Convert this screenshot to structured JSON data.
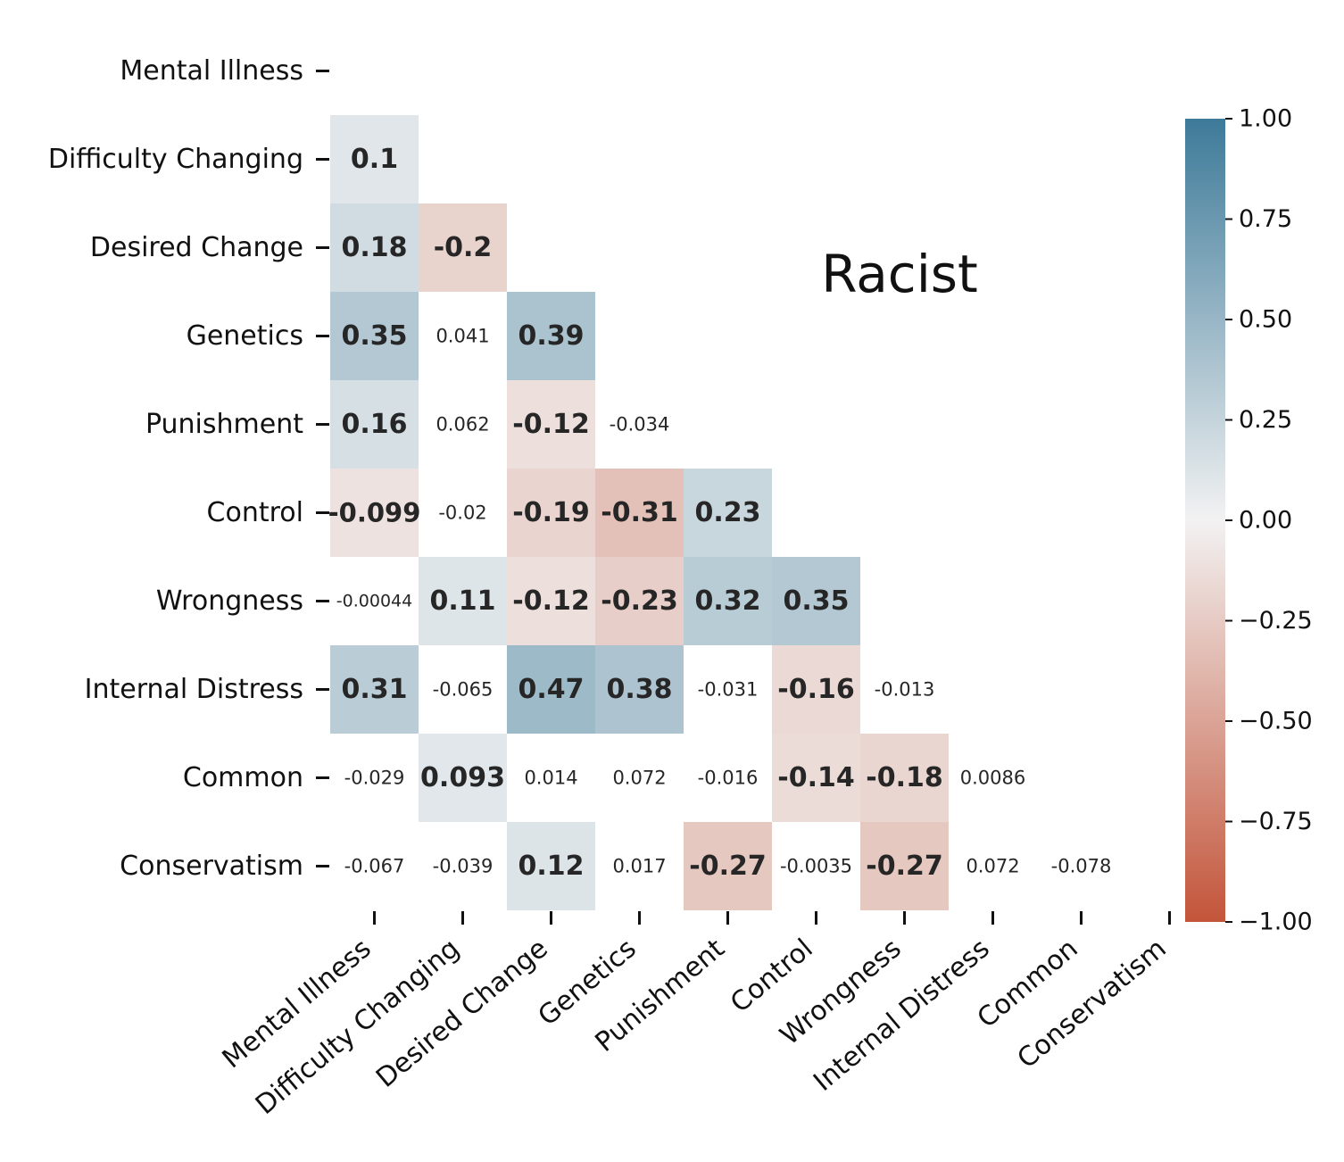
{
  "chart_data": {
    "type": "heatmap",
    "title": "Racist",
    "variables": [
      "Mental Illness",
      "Difficulty Changing",
      "Desired Change",
      "Genetics",
      "Punishment",
      "Control",
      "Wrongness",
      "Internal Distress",
      "Common",
      "Conservatism"
    ],
    "lower_triangle": true,
    "cells": [
      {
        "row": "Difficulty Changing",
        "col": "Mental Illness",
        "value": 0.1,
        "label": "0.1",
        "bold": true
      },
      {
        "row": "Desired Change",
        "col": "Mental Illness",
        "value": 0.18,
        "label": "0.18",
        "bold": true
      },
      {
        "row": "Desired Change",
        "col": "Difficulty Changing",
        "value": -0.2,
        "label": "-0.2",
        "bold": true
      },
      {
        "row": "Genetics",
        "col": "Mental Illness",
        "value": 0.35,
        "label": "0.35",
        "bold": true
      },
      {
        "row": "Genetics",
        "col": "Difficulty Changing",
        "value": 0.041,
        "label": "0.041",
        "bold": false
      },
      {
        "row": "Genetics",
        "col": "Desired Change",
        "value": 0.39,
        "label": "0.39",
        "bold": true
      },
      {
        "row": "Punishment",
        "col": "Mental Illness",
        "value": 0.16,
        "label": "0.16",
        "bold": true
      },
      {
        "row": "Punishment",
        "col": "Difficulty Changing",
        "value": 0.062,
        "label": "0.062",
        "bold": false
      },
      {
        "row": "Punishment",
        "col": "Desired Change",
        "value": -0.12,
        "label": "-0.12",
        "bold": true
      },
      {
        "row": "Punishment",
        "col": "Genetics",
        "value": -0.034,
        "label": "-0.034",
        "bold": false
      },
      {
        "row": "Control",
        "col": "Mental Illness",
        "value": -0.099,
        "label": "-0.099",
        "bold": true
      },
      {
        "row": "Control",
        "col": "Difficulty Changing",
        "value": -0.02,
        "label": "-0.02",
        "bold": false
      },
      {
        "row": "Control",
        "col": "Desired Change",
        "value": -0.19,
        "label": "-0.19",
        "bold": true
      },
      {
        "row": "Control",
        "col": "Genetics",
        "value": -0.31,
        "label": "-0.31",
        "bold": true
      },
      {
        "row": "Control",
        "col": "Punishment",
        "value": 0.23,
        "label": "0.23",
        "bold": true
      },
      {
        "row": "Wrongness",
        "col": "Mental Illness",
        "value": -0.00044,
        "label": "-0.00044",
        "bold": false
      },
      {
        "row": "Wrongness",
        "col": "Difficulty Changing",
        "value": 0.11,
        "label": "0.11",
        "bold": true
      },
      {
        "row": "Wrongness",
        "col": "Desired Change",
        "value": -0.12,
        "label": "-0.12",
        "bold": true
      },
      {
        "row": "Wrongness",
        "col": "Genetics",
        "value": -0.23,
        "label": "-0.23",
        "bold": true
      },
      {
        "row": "Wrongness",
        "col": "Punishment",
        "value": 0.32,
        "label": "0.32",
        "bold": true
      },
      {
        "row": "Wrongness",
        "col": "Control",
        "value": 0.35,
        "label": "0.35",
        "bold": true
      },
      {
        "row": "Internal Distress",
        "col": "Mental Illness",
        "value": 0.31,
        "label": "0.31",
        "bold": true
      },
      {
        "row": "Internal Distress",
        "col": "Difficulty Changing",
        "value": -0.065,
        "label": "-0.065",
        "bold": false
      },
      {
        "row": "Internal Distress",
        "col": "Desired Change",
        "value": 0.47,
        "label": "0.47",
        "bold": true
      },
      {
        "row": "Internal Distress",
        "col": "Genetics",
        "value": 0.38,
        "label": "0.38",
        "bold": true
      },
      {
        "row": "Internal Distress",
        "col": "Punishment",
        "value": -0.031,
        "label": "-0.031",
        "bold": false
      },
      {
        "row": "Internal Distress",
        "col": "Control",
        "value": -0.16,
        "label": "-0.16",
        "bold": true
      },
      {
        "row": "Internal Distress",
        "col": "Wrongness",
        "value": -0.013,
        "label": "-0.013",
        "bold": false
      },
      {
        "row": "Common",
        "col": "Mental Illness",
        "value": -0.029,
        "label": "-0.029",
        "bold": false
      },
      {
        "row": "Common",
        "col": "Difficulty Changing",
        "value": 0.093,
        "label": "0.093",
        "bold": true
      },
      {
        "row": "Common",
        "col": "Desired Change",
        "value": 0.014,
        "label": "0.014",
        "bold": false
      },
      {
        "row": "Common",
        "col": "Genetics",
        "value": 0.072,
        "label": "0.072",
        "bold": false
      },
      {
        "row": "Common",
        "col": "Punishment",
        "value": -0.016,
        "label": "-0.016",
        "bold": false
      },
      {
        "row": "Common",
        "col": "Control",
        "value": -0.14,
        "label": "-0.14",
        "bold": true
      },
      {
        "row": "Common",
        "col": "Wrongness",
        "value": -0.18,
        "label": "-0.18",
        "bold": true
      },
      {
        "row": "Common",
        "col": "Internal Distress",
        "value": 0.0086,
        "label": "0.0086",
        "bold": false
      },
      {
        "row": "Conservatism",
        "col": "Mental Illness",
        "value": -0.067,
        "label": "-0.067",
        "bold": false
      },
      {
        "row": "Conservatism",
        "col": "Difficulty Changing",
        "value": -0.039,
        "label": "-0.039",
        "bold": false
      },
      {
        "row": "Conservatism",
        "col": "Desired Change",
        "value": 0.12,
        "label": "0.12",
        "bold": true
      },
      {
        "row": "Conservatism",
        "col": "Genetics",
        "value": 0.017,
        "label": "0.017",
        "bold": false
      },
      {
        "row": "Conservatism",
        "col": "Punishment",
        "value": -0.27,
        "label": "-0.27",
        "bold": true
      },
      {
        "row": "Conservatism",
        "col": "Control",
        "value": -0.0035,
        "label": "-0.0035",
        "bold": false
      },
      {
        "row": "Conservatism",
        "col": "Wrongness",
        "value": -0.27,
        "label": "-0.27",
        "bold": true
      },
      {
        "row": "Conservatism",
        "col": "Internal Distress",
        "value": 0.072,
        "label": "0.072",
        "bold": false
      },
      {
        "row": "Conservatism",
        "col": "Common",
        "value": -0.078,
        "label": "-0.078",
        "bold": false
      }
    ],
    "colorbar": {
      "vmin": -1.0,
      "vmax": 1.0,
      "ticks": [
        {
          "value": 1.0,
          "label": "1.00"
        },
        {
          "value": 0.75,
          "label": "0.75"
        },
        {
          "value": 0.5,
          "label": "0.50"
        },
        {
          "value": 0.25,
          "label": "0.25"
        },
        {
          "value": 0.0,
          "label": "0.00"
        },
        {
          "value": -0.25,
          "label": "−0.25"
        },
        {
          "value": -0.5,
          "label": "−0.50"
        },
        {
          "value": -0.75,
          "label": "−0.75"
        },
        {
          "value": -1.0,
          "label": "−1.00"
        }
      ],
      "negative_color": "#c3553a",
      "center_color": "#f2f2f2",
      "positive_color": "#3d7a99"
    },
    "insignificant_cells_shown_as": "white",
    "legend": "colorbar-right"
  }
}
